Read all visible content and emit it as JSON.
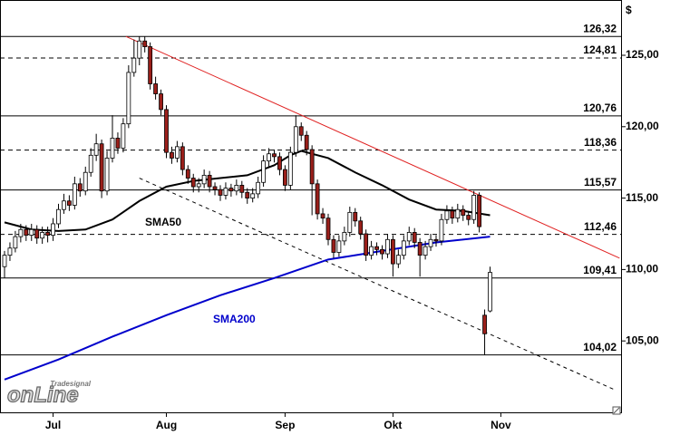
{
  "chart_data": {
    "type": "candlestick",
    "unit": "$",
    "ylim": [
      100,
      128.87
    ],
    "yticks": [
      {
        "value": 105,
        "label": "105,00"
      },
      {
        "value": 110,
        "label": "110,00"
      },
      {
        "value": 115,
        "label": "115,00"
      },
      {
        "value": 120,
        "label": "120,00"
      },
      {
        "value": 125,
        "label": "125,00"
      }
    ],
    "categories": [
      null,
      null,
      null,
      null,
      null,
      null,
      null,
      null,
      null,
      "Jul",
      null,
      null,
      null,
      null,
      null,
      null,
      null,
      null,
      null,
      null,
      null,
      null,
      null,
      null,
      null,
      null,
      null,
      null,
      null,
      null,
      "Aug",
      null,
      null,
      null,
      null,
      null,
      null,
      null,
      null,
      null,
      null,
      null,
      null,
      null,
      null,
      null,
      null,
      null,
      null,
      null,
      null,
      null,
      "Sep",
      null,
      null,
      null,
      null,
      null,
      null,
      null,
      null,
      null,
      null,
      null,
      null,
      null,
      null,
      null,
      null,
      null,
      null,
      null,
      "Okt",
      null,
      null,
      null,
      null,
      null,
      null,
      null,
      null,
      null,
      null,
      null,
      null,
      null,
      null,
      null,
      null,
      null,
      null,
      null,
      "Nov"
    ],
    "ohlc": [
      [
        110.2,
        111.3,
        109.4,
        111
      ],
      [
        111,
        111.9,
        110.6,
        111.5
      ],
      [
        111.5,
        112.7,
        111.2,
        112.3
      ],
      [
        112.3,
        113.2,
        111.9,
        112.8
      ],
      [
        112.8,
        113.1,
        112,
        112.4
      ],
      [
        112.4,
        113.2,
        112,
        112.8
      ],
      [
        112.8,
        113.1,
        111.8,
        112.2
      ],
      [
        112.2,
        113,
        111.8,
        112.6
      ],
      [
        112.6,
        113,
        111.9,
        112.4
      ],
      [
        112.4,
        113.6,
        112,
        113.2
      ],
      [
        113.2,
        114.6,
        112.9,
        114.2
      ],
      [
        114.2,
        115.3,
        113.9,
        114.8
      ],
      [
        114.8,
        115.2,
        114.1,
        114.5
      ],
      [
        114.5,
        116.5,
        114.2,
        116
      ],
      [
        116,
        116.4,
        115.1,
        115.5
      ],
      [
        115.5,
        117.2,
        115.2,
        116.8
      ],
      [
        116.8,
        118.5,
        116.5,
        118
      ],
      [
        118,
        119.5,
        117.6,
        118.8
      ],
      [
        118.8,
        119.1,
        115,
        115.5
      ],
      [
        115.5,
        118.3,
        115.2,
        117.8
      ],
      [
        117.8,
        120.8,
        117.5,
        119.2
      ],
      [
        119.2,
        119.6,
        118.1,
        118.5
      ],
      [
        118.5,
        120.6,
        118.2,
        120.2
      ],
      [
        120.2,
        124.3,
        119.9,
        123.8
      ],
      [
        123.8,
        126.1,
        123.5,
        124.8
      ],
      [
        124.8,
        126.32,
        124.3,
        126
      ],
      [
        126,
        126.3,
        125.2,
        125.6
      ],
      [
        125.6,
        125.9,
        122.6,
        123
      ],
      [
        123,
        123.5,
        121.9,
        122.3
      ],
      [
        122.3,
        122.6,
        120.8,
        121.2
      ],
      [
        121.2,
        121.5,
        117.8,
        118.2
      ],
      [
        118.2,
        118.6,
        117.4,
        117.8
      ],
      [
        117.8,
        119,
        117.5,
        118.6
      ],
      [
        118.6,
        118.9,
        116.6,
        117
      ],
      [
        117,
        117.3,
        116,
        116.4
      ],
      [
        116.4,
        116.7,
        115.4,
        115.8
      ],
      [
        115.8,
        116.4,
        115.4,
        116
      ],
      [
        116,
        117,
        115.7,
        116.6
      ],
      [
        116.6,
        116.9,
        115.4,
        115.8
      ],
      [
        115.8,
        116.1,
        115.2,
        115.6
      ],
      [
        115.6,
        115.9,
        114.8,
        115.2
      ],
      [
        115.2,
        116.1,
        114.9,
        115.7
      ],
      [
        115.7,
        116,
        115.1,
        115.5
      ],
      [
        115.5,
        116.3,
        115.2,
        115.9
      ],
      [
        115.9,
        116.2,
        115,
        115.4
      ],
      [
        115.4,
        115.7,
        114.6,
        115
      ],
      [
        115,
        115.7,
        114.7,
        115.3
      ],
      [
        115.3,
        116.5,
        115,
        116.1
      ],
      [
        116.1,
        118,
        115.8,
        117.6
      ],
      [
        117.6,
        118.5,
        117.2,
        118.1
      ],
      [
        118.1,
        118.4,
        117.5,
        117.9
      ],
      [
        117.9,
        118.2,
        116.6,
        117
      ],
      [
        117,
        117.3,
        115.5,
        115.9
      ],
      [
        115.9,
        118.6,
        115.6,
        118.2
      ],
      [
        118.2,
        120.8,
        117.9,
        120
      ],
      [
        120,
        120.3,
        119,
        119.4
      ],
      [
        119.4,
        119.7,
        118,
        118.4
      ],
      [
        118.4,
        118.7,
        113.8,
        116
      ],
      [
        116,
        116.3,
        113.5,
        113.9
      ],
      [
        113.9,
        114.3,
        113.2,
        113.6
      ],
      [
        113.6,
        113.9,
        111.7,
        112.1
      ],
      [
        112.1,
        112.4,
        110.8,
        111.2
      ],
      [
        111.2,
        112.4,
        110.9,
        112
      ],
      [
        112,
        113,
        111.7,
        112.6
      ],
      [
        112.6,
        114.4,
        112.3,
        114
      ],
      [
        114,
        114.3,
        113,
        113.4
      ],
      [
        113.4,
        113.7,
        112.1,
        112.5
      ],
      [
        112.5,
        112.8,
        110.6,
        111
      ],
      [
        111,
        112,
        110.7,
        111.6
      ],
      [
        111.6,
        111.9,
        111,
        111.4
      ],
      [
        111.4,
        111.7,
        110.7,
        111.1
      ],
      [
        111.1,
        112.5,
        110.8,
        112.1
      ],
      [
        112.1,
        112.4,
        109.5,
        110.4
      ],
      [
        110.4,
        111.4,
        110.1,
        111
      ],
      [
        111,
        112.4,
        110.7,
        112
      ],
      [
        112,
        113,
        111.7,
        112.6
      ],
      [
        112.6,
        112.9,
        111.5,
        111.9
      ],
      [
        111.9,
        112.2,
        109.5,
        111
      ],
      [
        111,
        112,
        110.7,
        111.6
      ],
      [
        111.6,
        112.5,
        111.3,
        112.1
      ],
      [
        112.1,
        112.4,
        111.6,
        112
      ],
      [
        112,
        113.9,
        111.7,
        113.5
      ],
      [
        113.5,
        114.5,
        113.2,
        114.1
      ],
      [
        114.1,
        114.4,
        113.2,
        113.6
      ],
      [
        113.6,
        114.6,
        113.3,
        114.2
      ],
      [
        114.2,
        114.5,
        113.4,
        113.8
      ],
      [
        113.8,
        114.1,
        113.1,
        113.5
      ],
      [
        113.5,
        115.5,
        113.2,
        115.2
      ],
      [
        115.2,
        115.4,
        112.6,
        113
      ],
      [
        106.8,
        107.2,
        104.02,
        105.5
      ],
      [
        107.1,
        110.2,
        107,
        109.8
      ],
      null,
      null
    ],
    "up_color": "#ffffff",
    "down_color": "#9a1f1a",
    "series": [
      {
        "name": "SMA50",
        "color": "#000000",
        "x": [
          0,
          5,
          10,
          15,
          20,
          25,
          30,
          35,
          40,
          45,
          50,
          53,
          55,
          60,
          65,
          70,
          75,
          80,
          85,
          90
        ],
        "values": [
          113.3,
          112.8,
          112.7,
          112.8,
          113.5,
          114.8,
          115.8,
          116.2,
          116.4,
          116.6,
          117.3,
          118,
          118.3,
          117.8,
          116.8,
          115.9,
          114.9,
          114.2,
          114.1,
          113.8
        ]
      },
      {
        "name": "SMA200",
        "color": "#0000cc",
        "x": [
          0,
          10,
          20,
          30,
          40,
          50,
          60,
          70,
          80,
          90
        ],
        "values": [
          102.3,
          103.7,
          105.3,
          106.8,
          108.2,
          109.4,
          110.7,
          111.3,
          111.9,
          112.3
        ]
      }
    ],
    "levels": [
      {
        "value": 126.32,
        "label": "126,32",
        "style": "solid"
      },
      {
        "value": 124.81,
        "label": "124,81",
        "style": "dashed"
      },
      {
        "value": 120.76,
        "label": "120,76",
        "style": "solid"
      },
      {
        "value": 118.36,
        "label": "118,36",
        "style": "dashed"
      },
      {
        "value": 115.57,
        "label": "115,57",
        "style": "solid"
      },
      {
        "value": 112.46,
        "label": "112,46",
        "style": "dashed"
      },
      {
        "value": 109.41,
        "label": "109,41",
        "style": "solid"
      },
      {
        "value": 104.02,
        "label": "104,02",
        "style": "solid"
      }
    ],
    "trendlines": [
      {
        "color": "#e02020",
        "style": "solid",
        "x": [
          22.5,
          114
        ],
        "values": [
          126.32,
          110.8
        ]
      },
      {
        "color": "#000000",
        "style": "dashed",
        "x": [
          25,
          113
        ],
        "values": [
          116.4,
          101.6
        ]
      }
    ],
    "logo": {
      "brand": "onLine",
      "maker": "Tradesignal"
    }
  }
}
